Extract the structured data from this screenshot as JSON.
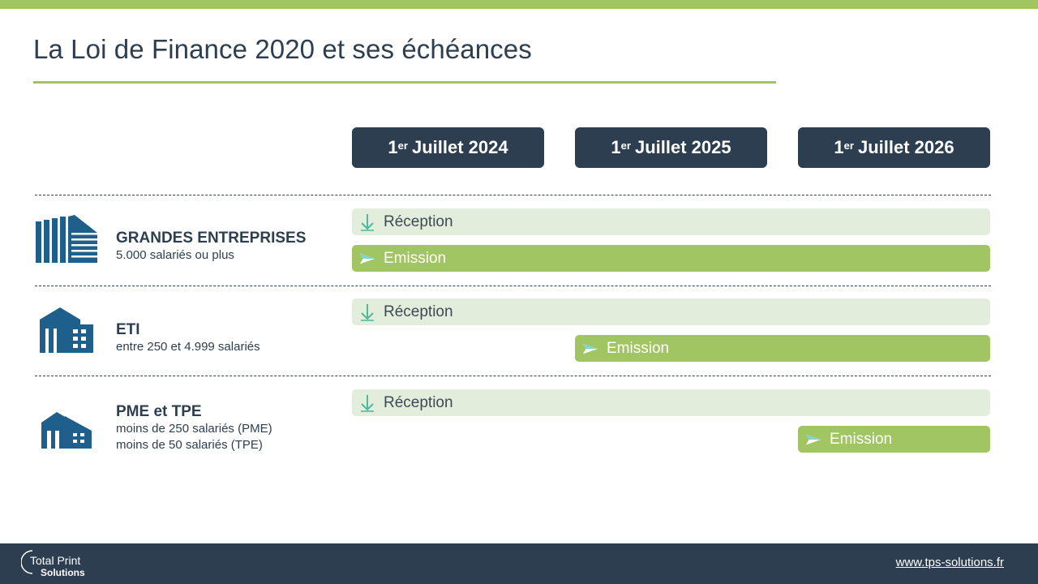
{
  "slide": {
    "title": "La Loi de Finance 2020 et ses échéances",
    "colors": {
      "dark_blue": "#2c3e50",
      "green": "#a2c563",
      "light_green": "#e2eedb",
      "icon_blue": "#1f5f8b"
    }
  },
  "dates": [
    {
      "sup": "er",
      "pre": "1",
      "label": "Juillet 2024"
    },
    {
      "sup": "er",
      "pre": "1",
      "label": "Juillet 2025"
    },
    {
      "sup": "er",
      "pre": "1",
      "label": "Juillet 2026"
    }
  ],
  "rows": [
    {
      "name": "GRANDES ENTREPRISES",
      "sub1": "5.000 salariés ou plus",
      "sub2": "",
      "icon": "large-building-icon",
      "reception": "Réception",
      "emission": "Emission"
    },
    {
      "name": "ETI",
      "sub1": "entre 250 et 4.999 salariés",
      "sub2": "",
      "icon": "medium-building-icon",
      "reception": "Réception",
      "emission": "Emission"
    },
    {
      "name": "PME et TPE",
      "sub1": "moins de 250 salariés (PME)",
      "sub2": "moins de 50 salariés (TPE)",
      "icon": "small-building-icon",
      "reception": "Réception",
      "emission": "Emission"
    }
  ],
  "footer": {
    "logo_line1": "Total Print",
    "logo_line2": "Solutions",
    "link": "www.tps-solutions.fr"
  }
}
